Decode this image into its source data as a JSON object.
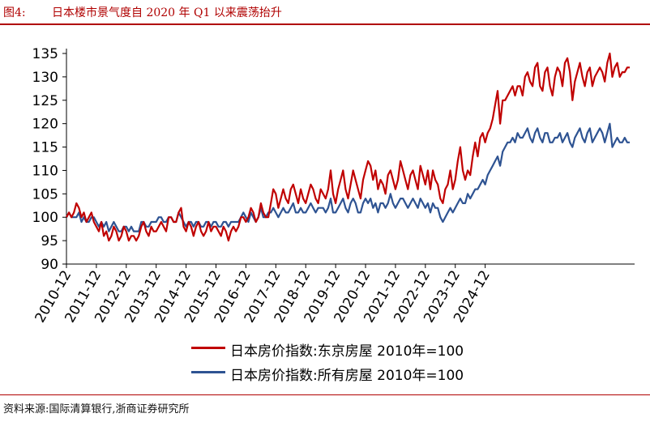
{
  "header": {
    "figure_number": "图4:",
    "title": "日本楼市景气度自 2020 年 Q1 以来震荡抬升"
  },
  "footer": {
    "source": "资料来源:国际清算银行,浙商证券研究所"
  },
  "chart_data": {
    "type": "line",
    "title": "日本楼市景气度自 2020 年 Q1 以来震荡抬升",
    "xlabel": "",
    "ylabel": "",
    "ylim": [
      90,
      135
    ],
    "yticks": [
      90,
      95,
      100,
      105,
      110,
      115,
      120,
      125,
      130,
      135
    ],
    "x_start": "2010-12",
    "x_end": "2024-12",
    "x_frequency": "monthly",
    "x_ticks": [
      "2010-12",
      "2011-12",
      "2012-12",
      "2013-12",
      "2014-12",
      "2015-12",
      "2016-12",
      "2017-12",
      "2018-12",
      "2019-12",
      "2020-12",
      "2021-12",
      "2022-12",
      "2023-12",
      "2024-12"
    ],
    "grid": false,
    "legend_position": "bottom",
    "series": [
      {
        "name": "日本房价指数:东京房屋 2010年=100",
        "color": "#c00000",
        "values": [
          100,
          101,
          100,
          101,
          103,
          102,
          100,
          101,
          99,
          100,
          101,
          99,
          98,
          97,
          99,
          96,
          97,
          95,
          96,
          98,
          97,
          95,
          96,
          98,
          97,
          95,
          96,
          96,
          95,
          96,
          98,
          99,
          97,
          96,
          98,
          97,
          97,
          98,
          99,
          98,
          97,
          100,
          100,
          99,
          99,
          101,
          102,
          98,
          97,
          99,
          98,
          96,
          98,
          99,
          97,
          96,
          97,
          99,
          97,
          98,
          98,
          97,
          96,
          98,
          97,
          95,
          97,
          98,
          97,
          98,
          100,
          100,
          99,
          100,
          102,
          101,
          99,
          100,
          103,
          101,
          100,
          100,
          103,
          106,
          105,
          102,
          104,
          106,
          104,
          103,
          106,
          107,
          105,
          103,
          106,
          104,
          103,
          105,
          107,
          106,
          104,
          103,
          106,
          105,
          104,
          106,
          110,
          105,
          103,
          106,
          108,
          110,
          106,
          104,
          107,
          110,
          108,
          106,
          104,
          108,
          110,
          112,
          111,
          108,
          110,
          106,
          108,
          107,
          105,
          109,
          110,
          108,
          106,
          108,
          112,
          110,
          108,
          106,
          109,
          110,
          108,
          106,
          111,
          109,
          107,
          110,
          106,
          110,
          108,
          107,
          104,
          103,
          106,
          107,
          110,
          106,
          108,
          112,
          115,
          110,
          108,
          110,
          109,
          113,
          116,
          113,
          117,
          118,
          116,
          118,
          119,
          121,
          124,
          127,
          120,
          125,
          125,
          126,
          127,
          128,
          126,
          128,
          128,
          126,
          130,
          131,
          129,
          128,
          132,
          133,
          128,
          127,
          131,
          132,
          128,
          126,
          130,
          132,
          131,
          128,
          133,
          134,
          131,
          125,
          129,
          131,
          133,
          130,
          128,
          131,
          132,
          128,
          130,
          131,
          132,
          131,
          129,
          133,
          135,
          130,
          132,
          133,
          130,
          131,
          131,
          132,
          132
        ]
      },
      {
        "name": "日本房价指数:所有房屋 2010年=100",
        "color": "#2e5392",
        "values": [
          100,
          101,
          100,
          100,
          100,
          101,
          99,
          100,
          99,
          99,
          100,
          100,
          99,
          98,
          99,
          98,
          99,
          97,
          98,
          99,
          98,
          97,
          97,
          98,
          98,
          97,
          98,
          97,
          97,
          97,
          99,
          99,
          98,
          98,
          99,
          99,
          99,
          100,
          100,
          99,
          99,
          100,
          100,
          99,
          99,
          101,
          100,
          99,
          98,
          99,
          99,
          98,
          99,
          99,
          98,
          98,
          99,
          99,
          98,
          99,
          99,
          98,
          98,
          99,
          99,
          98,
          99,
          99,
          99,
          99,
          100,
          101,
          100,
          99,
          101,
          100,
          99,
          100,
          102,
          100,
          100,
          101,
          101,
          102,
          101,
          100,
          101,
          102,
          101,
          101,
          102,
          103,
          101,
          101,
          102,
          101,
          101,
          102,
          103,
          102,
          101,
          102,
          102,
          102,
          101,
          102,
          104,
          101,
          101,
          102,
          103,
          104,
          102,
          101,
          103,
          104,
          103,
          101,
          101,
          103,
          104,
          103,
          104,
          102,
          103,
          101,
          103,
          103,
          102,
          103,
          105,
          103,
          102,
          103,
          104,
          104,
          103,
          102,
          103,
          104,
          103,
          102,
          104,
          103,
          102,
          103,
          101,
          103,
          102,
          102,
          100,
          99,
          100,
          101,
          102,
          101,
          102,
          103,
          104,
          103,
          103,
          105,
          104,
          105,
          106,
          106,
          107,
          108,
          107,
          109,
          110,
          111,
          112,
          113,
          111,
          114,
          115,
          116,
          116,
          117,
          116,
          118,
          117,
          117,
          118,
          119,
          117,
          116,
          118,
          119,
          117,
          116,
          118,
          118,
          116,
          116,
          117,
          117,
          118,
          116,
          117,
          118,
          116,
          115,
          117,
          118,
          119,
          117,
          116,
          118,
          119,
          116,
          117,
          118,
          119,
          118,
          116,
          118,
          120,
          115,
          116,
          117,
          116,
          116,
          117,
          116,
          116
        ]
      }
    ]
  }
}
